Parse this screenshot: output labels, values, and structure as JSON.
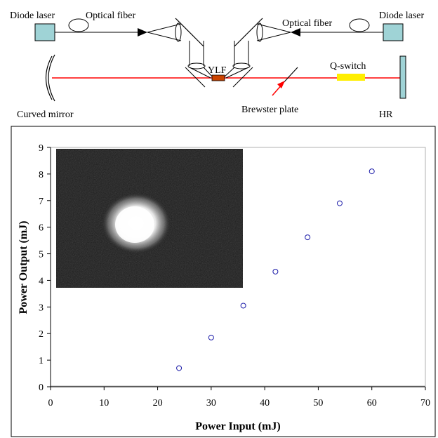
{
  "diagram": {
    "labels": {
      "diode_laser_left": "Diode laser",
      "optical_fiber_left": "Optical fiber",
      "optical_fiber_right": "Optical fiber",
      "diode_laser_right": "Diode laser",
      "crystal": "YLF",
      "q_switch": "Q-switch",
      "curved_mirror": "Curved mirror",
      "brewster_plate": "Brewster plate",
      "hr": "HR"
    },
    "colors": {
      "diode_box": "#9fd3d6",
      "beam": "#ff0000",
      "q_switch": "#ffee00",
      "crystal": "#cc4400",
      "hr": "#9fd3d6",
      "arrow": "#ff0000"
    }
  },
  "chart_data": {
    "type": "scatter",
    "title": "",
    "xlabel": "Power Input (mJ)",
    "ylabel": "Power Output (mJ)",
    "xlim": [
      0,
      70
    ],
    "ylim": [
      0,
      9
    ],
    "xticks": [
      "0",
      "10",
      "20",
      "30",
      "40",
      "50",
      "60",
      "70"
    ],
    "yticks": [
      "0",
      "1",
      "2",
      "3",
      "4",
      "5",
      "6",
      "7",
      "8",
      "9"
    ],
    "grid": false,
    "legend": "none",
    "series": [
      {
        "marker": "open-circle",
        "color": "#1a1aa8",
        "x": [
          24,
          30,
          36,
          42,
          48,
          54,
          60
        ],
        "y": [
          0.7,
          1.85,
          3.05,
          4.33,
          5.62,
          6.9,
          8.1
        ]
      }
    ],
    "inset": {
      "content": "beam-profile-image",
      "background": "#1a1a1a",
      "spot_color": "#ffffff"
    }
  }
}
